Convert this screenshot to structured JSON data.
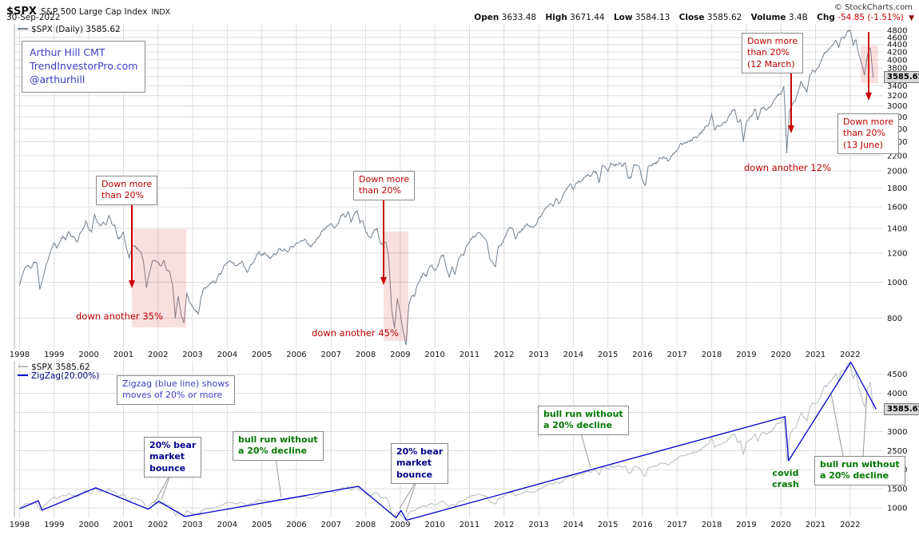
{
  "header": {
    "symbol": "$SPX",
    "name": "S&P 500 Large Cap Index",
    "exchange": "INDX",
    "copyright": "© StockCharts.com",
    "date": "30-Sep-2022",
    "quote": [
      {
        "label": "Open",
        "value": "3633.48"
      },
      {
        "label": "High",
        "value": "3671.44"
      },
      {
        "label": "Low",
        "value": "3584.13"
      },
      {
        "label": "Close",
        "value": "3585.62"
      },
      {
        "label": "Volume",
        "value": "3.4B"
      },
      {
        "label": "Chg",
        "value": "-54.85 (-1.51%)"
      }
    ],
    "direction_icon": "▼"
  },
  "top_panel": {
    "legend": "$SPX (Daily) 3585.62",
    "price_tag": "3585.62",
    "author_note": "Arthur Hill CMT\nTrendInvestorPro.com\n@arthurhill",
    "ann_2001_box": "Down more\nthan 20%",
    "ann_2001_text": "down another 35%",
    "ann_2008_box": "Down more\nthan 20%",
    "ann_2008_text": "down another 45%",
    "ann_2020_box": "Down more\nthan 20%\n(12 March)",
    "ann_2020_text": "down another 12%",
    "ann_2022_box": "Down more\nthan 20%\n(13 June)"
  },
  "bottom_panel": {
    "legend_spx": "$SPX 3585.62",
    "legend_zigzag": "ZigZag(20.00%)",
    "price_tag": "3585.62",
    "zigzag_note": "Zigzag (blue line) shows\nmoves of 20% or more",
    "bounce_1": "20% bear\nmarket\nbounce",
    "bounce_2": "20% bear\nmarket\nbounce",
    "bull_run_1": "bull run without\na 20% decline",
    "bull_run_2": "bull run without\na 20% decline",
    "bull_run_3": "bull run without\na 20% decline",
    "covid": "covid\ncrash"
  },
  "chart_data": [
    {
      "type": "line",
      "title": "$SPX (Daily) 3585.62",
      "yscale": "log",
      "xlim": [
        1997.85,
        2022.95
      ],
      "ylim": [
        660,
        5000
      ],
      "grid": true,
      "grid_color": "#dcdcdc",
      "x_ticks": [
        1998,
        1999,
        2000,
        2001,
        2002,
        2003,
        2004,
        2005,
        2006,
        2007,
        2008,
        2009,
        2010,
        2011,
        2012,
        2013,
        2014,
        2015,
        2016,
        2017,
        2018,
        2019,
        2020,
        2021,
        2022
      ],
      "y_gridlines": [
        800,
        1000,
        1200,
        1400,
        1600,
        1800,
        2000,
        2200,
        2400,
        2600,
        2800,
        3000,
        3200,
        3400,
        3600,
        3800,
        4000,
        4200,
        4400,
        4600,
        4800
      ],
      "y_labels": [
        800,
        1000,
        1200,
        1400,
        1600,
        1800,
        2000,
        2200,
        2400,
        2600,
        2800,
        3000,
        3200,
        3400,
        3800,
        4000,
        4200,
        4400,
        4600,
        4800
      ],
      "series": [
        {
          "name": "$SPX Daily close",
          "color": "#708090",
          "width": 1,
          "jitter": 0.007,
          "start": 1998,
          "monthly": [
            980,
            1049,
            1102,
            1112,
            1091,
            1134,
            1121,
            957,
            1017,
            1099,
            1164,
            1229,
            1280,
            1238,
            1286,
            1335,
            1302,
            1373,
            1329,
            1320,
            1283,
            1363,
            1389,
            1469,
            1394,
            1366,
            1527,
            1452,
            1421,
            1455,
            1431,
            1518,
            1437,
            1429,
            1315,
            1320,
            1366,
            1240,
            1160,
            1249,
            1256,
            1224,
            1211,
            1134,
            966,
            1060,
            1139,
            1148,
            1130,
            1107,
            1147,
            1077,
            1067,
            990,
            800,
            916,
            815,
            777,
            936,
            880,
            856,
            841,
            820,
            917,
            964,
            975,
            990,
            1008,
            996,
            1051,
            1058,
            1112,
            1131,
            1145,
            1126,
            1107,
            1121,
            1141,
            1102,
            1064,
            1115,
            1130,
            1174,
            1212,
            1181,
            1204,
            1181,
            1157,
            1192,
            1191,
            1234,
            1220,
            1229,
            1207,
            1249,
            1248,
            1280,
            1281,
            1295,
            1311,
            1270,
            1248,
            1277,
            1304,
            1336,
            1378,
            1401,
            1418,
            1438,
            1407,
            1421,
            1482,
            1531,
            1503,
            1553,
            1455,
            1527,
            1565,
            1445,
            1468,
            1379,
            1331,
            1323,
            1386,
            1400,
            1280,
            1267,
            1283,
            1166,
            850,
            750,
            903,
            826,
            735,
            677,
            873,
            919,
            919,
            987,
            1021,
            1057,
            1036,
            1096,
            1115,
            1074,
            1104,
            1169,
            1187,
            1089,
            1031,
            1102,
            1049,
            1141,
            1183,
            1181,
            1258,
            1286,
            1327,
            1326,
            1364,
            1345,
            1321,
            1292,
            1159,
            1131,
            1100,
            1247,
            1258,
            1312,
            1366,
            1408,
            1398,
            1310,
            1362,
            1379,
            1407,
            1441,
            1412,
            1416,
            1426,
            1498,
            1515,
            1569,
            1598,
            1631,
            1606,
            1686,
            1633,
            1682,
            1757,
            1806,
            1848,
            1783,
            1859,
            1872,
            1884,
            1924,
            1960,
            1931,
            2003,
            1972,
            1862,
            2068,
            2059,
            1995,
            2105,
            2068,
            2086,
            2107,
            2063,
            2104,
            1913,
            1920,
            2079,
            2080,
            2044,
            1880,
            1829,
            2060,
            2065,
            2097,
            2099,
            2174,
            2171,
            2168,
            2126,
            2199,
            2239,
            2279,
            2364,
            2363,
            2384,
            2412,
            2423,
            2470,
            2472,
            2519,
            2575,
            2648,
            2674,
            2853,
            2581,
            2641,
            2648,
            2705,
            2718,
            2816,
            2902,
            2930,
            2712,
            2760,
            2400,
            2704,
            2784,
            2834,
            2946,
            2752,
            2942,
            2980,
            2926,
            2977,
            3038,
            3141,
            3231,
            3226,
            3386,
            2237,
            2912,
            3044,
            3100,
            3271,
            3500,
            3363,
            3270,
            3622,
            3756,
            3714,
            3811,
            3973,
            4181,
            4204,
            4298,
            4395,
            4523,
            4308,
            4605,
            4567,
            4766,
            4797,
            4374,
            4530,
            4132,
            3900,
            3640,
            4130,
            4305,
            3586
          ]
        }
      ]
    },
    {
      "type": "line",
      "title": "$SPX 3585.62 with ZigZag(20.00%)",
      "yscale": "linear",
      "xlim": [
        1997.85,
        2022.95
      ],
      "ylim": [
        750,
        4850
      ],
      "grid": true,
      "grid_color": "#dcdcdc",
      "x_ticks": [
        1998,
        1999,
        2000,
        2001,
        2002,
        2003,
        2004,
        2005,
        2006,
        2007,
        2008,
        2009,
        2010,
        2011,
        2012,
        2013,
        2014,
        2015,
        2016,
        2017,
        2018,
        2019,
        2020,
        2021,
        2022
      ],
      "y_gridlines": [
        1000,
        1500,
        2000,
        2500,
        3000,
        3500,
        4000,
        4500
      ],
      "y_labels": [
        1000,
        1500,
        2000,
        2500,
        3000,
        4000,
        4500
      ],
      "series": [
        {
          "name": "$SPX",
          "color": "#b5bcc2",
          "width": 1,
          "jitter": 0.007,
          "start": 1998,
          "monthly": [
            980,
            1049,
            1102,
            1112,
            1091,
            1134,
            1121,
            957,
            1017,
            1099,
            1164,
            1229,
            1280,
            1238,
            1286,
            1335,
            1302,
            1373,
            1329,
            1320,
            1283,
            1363,
            1389,
            1469,
            1394,
            1366,
            1527,
            1452,
            1421,
            1455,
            1431,
            1518,
            1437,
            1429,
            1315,
            1320,
            1366,
            1240,
            1160,
            1249,
            1256,
            1224,
            1211,
            1134,
            966,
            1060,
            1139,
            1148,
            1130,
            1107,
            1147,
            1077,
            1067,
            990,
            800,
            916,
            815,
            777,
            936,
            880,
            856,
            841,
            820,
            917,
            964,
            975,
            990,
            1008,
            996,
            1051,
            1058,
            1112,
            1131,
            1145,
            1126,
            1107,
            1121,
            1141,
            1102,
            1064,
            1115,
            1130,
            1174,
            1212,
            1181,
            1204,
            1181,
            1157,
            1192,
            1191,
            1234,
            1220,
            1229,
            1207,
            1249,
            1248,
            1280,
            1281,
            1295,
            1311,
            1270,
            1248,
            1277,
            1304,
            1336,
            1378,
            1401,
            1418,
            1438,
            1407,
            1421,
            1482,
            1531,
            1503,
            1553,
            1455,
            1527,
            1565,
            1445,
            1468,
            1379,
            1331,
            1323,
            1386,
            1400,
            1280,
            1267,
            1283,
            1166,
            850,
            750,
            903,
            826,
            735,
            677,
            873,
            919,
            919,
            987,
            1021,
            1057,
            1036,
            1096,
            1115,
            1074,
            1104,
            1169,
            1187,
            1089,
            1031,
            1102,
            1049,
            1141,
            1183,
            1181,
            1258,
            1286,
            1327,
            1326,
            1364,
            1345,
            1321,
            1292,
            1159,
            1131,
            1100,
            1247,
            1258,
            1312,
            1366,
            1408,
            1398,
            1310,
            1362,
            1379,
            1407,
            1441,
            1412,
            1416,
            1426,
            1498,
            1515,
            1569,
            1598,
            1631,
            1606,
            1686,
            1633,
            1682,
            1757,
            1806,
            1848,
            1783,
            1859,
            1872,
            1884,
            1924,
            1960,
            1931,
            2003,
            1972,
            1862,
            2068,
            2059,
            1995,
            2105,
            2068,
            2086,
            2107,
            2063,
            2104,
            1913,
            1920,
            2079,
            2080,
            2044,
            1880,
            1829,
            2060,
            2065,
            2097,
            2099,
            2174,
            2171,
            2168,
            2126,
            2199,
            2239,
            2279,
            2364,
            2363,
            2384,
            2412,
            2423,
            2470,
            2472,
            2519,
            2575,
            2648,
            2674,
            2853,
            2581,
            2641,
            2648,
            2705,
            2718,
            2816,
            2902,
            2930,
            2712,
            2760,
            2400,
            2704,
            2784,
            2834,
            2946,
            2752,
            2942,
            2980,
            2926,
            2977,
            3038,
            3141,
            3231,
            3226,
            3386,
            2237,
            2912,
            3044,
            3100,
            3271,
            3500,
            3363,
            3270,
            3622,
            3756,
            3714,
            3811,
            3973,
            4181,
            4204,
            4298,
            4395,
            4523,
            4308,
            4605,
            4567,
            4766,
            4797,
            4374,
            4530,
            4132,
            3900,
            3640,
            4130,
            4305,
            3586
          ]
        },
        {
          "name": "ZigZag(20.00%)",
          "color": "#0000cc",
          "width": 1.3,
          "points": [
            [
              1998.0,
              975
            ],
            [
              1998.54,
              1187
            ],
            [
              1998.65,
              940
            ],
            [
              2000.2,
              1527
            ],
            [
              2001.72,
              965
            ],
            [
              2002.02,
              1173
            ],
            [
              2002.78,
              776
            ],
            [
              2007.79,
              1565
            ],
            [
              2008.88,
              741
            ],
            [
              2009.02,
              934
            ],
            [
              2009.18,
              676
            ],
            [
              2020.12,
              3393
            ],
            [
              2020.22,
              2237
            ],
            [
              2022.02,
              4818
            ],
            [
              2022.75,
              3585.62
            ]
          ]
        }
      ]
    }
  ]
}
